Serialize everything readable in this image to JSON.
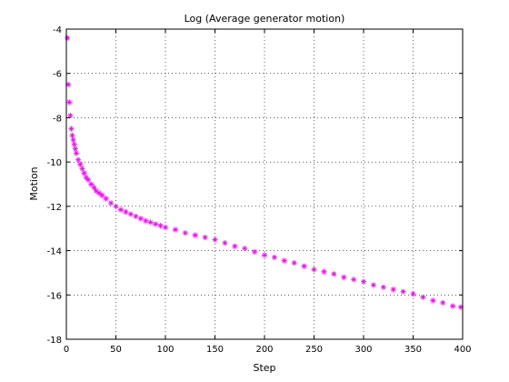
{
  "chart_data": {
    "type": "scatter",
    "title": "Log (Average generator motion)",
    "xlabel": "Step",
    "ylabel": "Motion",
    "xlim": [
      0,
      400
    ],
    "ylim": [
      -18,
      -4
    ],
    "xticks": [
      0,
      50,
      100,
      150,
      200,
      250,
      300,
      350,
      400
    ],
    "yticks": [
      -18,
      -16,
      -14,
      -12,
      -10,
      -8,
      -6,
      -4
    ],
    "grid": true,
    "marker": "asterisk",
    "color": "#ff00ff",
    "series": [
      {
        "x": [
          1,
          2,
          3,
          4,
          5,
          6,
          7,
          8,
          9,
          10,
          12,
          14,
          16,
          18,
          20,
          22,
          25,
          28,
          30,
          33,
          36,
          40,
          45,
          50,
          55,
          60,
          65,
          70,
          75,
          80,
          85,
          90,
          95,
          100,
          110,
          120,
          130,
          140,
          150,
          160,
          170,
          180,
          190,
          200,
          210,
          220,
          230,
          240,
          250,
          260,
          270,
          280,
          290,
          300,
          310,
          320,
          330,
          340,
          350,
          360,
          370,
          380,
          390,
          398
        ],
        "y": [
          -4.4,
          -6.5,
          -7.3,
          -7.9,
          -8.5,
          -8.8,
          -9.0,
          -9.2,
          -9.4,
          -9.6,
          -9.9,
          -10.1,
          -10.3,
          -10.5,
          -10.7,
          -10.8,
          -11.0,
          -11.15,
          -11.3,
          -11.4,
          -11.5,
          -11.65,
          -11.85,
          -12.0,
          -12.15,
          -12.25,
          -12.35,
          -12.45,
          -12.55,
          -12.65,
          -12.72,
          -12.8,
          -12.87,
          -12.95,
          -13.05,
          -13.2,
          -13.3,
          -13.4,
          -13.5,
          -13.65,
          -13.8,
          -13.9,
          -14.05,
          -14.2,
          -14.3,
          -14.45,
          -14.55,
          -14.7,
          -14.85,
          -14.95,
          -15.05,
          -15.2,
          -15.3,
          -15.4,
          -15.55,
          -15.65,
          -15.75,
          -15.85,
          -15.95,
          -16.1,
          -16.25,
          -16.35,
          -16.5,
          -16.55
        ]
      }
    ]
  }
}
